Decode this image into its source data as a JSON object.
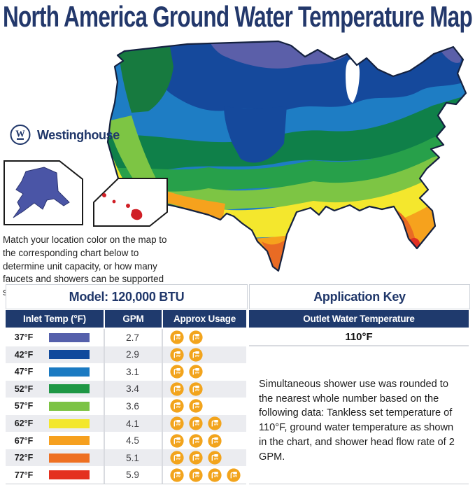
{
  "title": "North America Ground Water Temperature Map",
  "brand": {
    "name": "Westinghouse",
    "monogram": "W"
  },
  "intro_text": "Match your location color on the map to the corresponding chart below to determine unit capacity, or how many faucets and showers can be supported simultaneously.",
  "map": {
    "colors": {
      "base": "#1e7dc4",
      "teal": "#0f8049",
      "green": "#27a04a",
      "lightgreen": "#7dc544",
      "yellow": "#f4e72d",
      "orange": "#f6a21d",
      "darkorange": "#e96b24",
      "red": "#e03024",
      "navy": "#15499c",
      "purple": "#5b5fa9",
      "coastgreen": "#177a3f",
      "lake": "#ffffff",
      "outline": "#14213f",
      "stateline": "#16294f",
      "alaska": "#4a55a6",
      "hawaii": "#d01f26"
    }
  },
  "table": {
    "model_header": "Model: 120,000 BTU",
    "columns": [
      "Inlet Temp (°F)",
      "GPM",
      "Approx Usage"
    ],
    "rows": [
      {
        "temp": "37°F",
        "color": "#5560ab",
        "gpm": "2.7",
        "showers": 2
      },
      {
        "temp": "42°F",
        "color": "#10499c",
        "gpm": "2.9",
        "showers": 2
      },
      {
        "temp": "47°F",
        "color": "#1b7ac2",
        "gpm": "3.1",
        "showers": 2
      },
      {
        "temp": "52°F",
        "color": "#1f9745",
        "gpm": "3.4",
        "showers": 2
      },
      {
        "temp": "57°F",
        "color": "#7cc344",
        "gpm": "3.6",
        "showers": 2
      },
      {
        "temp": "62°F",
        "color": "#f3e72c",
        "gpm": "4.1",
        "showers": 3
      },
      {
        "temp": "67°F",
        "color": "#f6a01f",
        "gpm": "4.5",
        "showers": 3
      },
      {
        "temp": "72°F",
        "color": "#ee7022",
        "gpm": "5.1",
        "showers": 3
      },
      {
        "temp": "77°F",
        "color": "#e4301f",
        "gpm": "5.9",
        "showers": 4
      }
    ]
  },
  "application_key": {
    "header": "Application Key",
    "outlet_label": "Outlet Water Temperature",
    "outlet_temp": "110°F",
    "note": "Simultaneous shower use was rounded to the nearest whole  number based on the following data: Tankless set temperature of 110°F, ground water temperature as shown in the chart, and shower head flow rate of 2 GPM."
  },
  "icons": {
    "usage": "shower-icon",
    "brand": "westinghouse-logo"
  }
}
